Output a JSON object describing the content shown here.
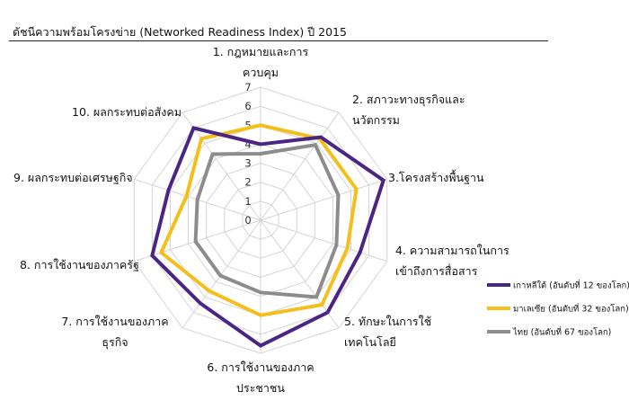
{
  "chart_data": {
    "type": "radar",
    "title": "ดัชนีความพร้อมโครงข่าย (Networked Readiness Index) ปี 2015",
    "categories": [
      [
        "1. กฎหมายและการ",
        "ควบคุม"
      ],
      [
        "2. สภาวะทางธุรกิจและ",
        "นวัตกรรม"
      ],
      [
        "3.โครงสร้างพื้นฐาน"
      ],
      [
        "4. ความสามารถในการ",
        "เข้าถึงการสื่อสาร"
      ],
      [
        "5. ทักษะในการใช้",
        "เทคโนโลยี"
      ],
      [
        "6. การใช้งานของภาค",
        "ประชาชน"
      ],
      [
        "7. การใช้งานของภาค",
        "ธุรกิจ"
      ],
      [
        "8. การใช้งานของภาครัฐ"
      ],
      [
        "9. ผลกระทบต่อเศรษฐกิจ"
      ],
      [
        "10. ผลกระทบต่อสังคม"
      ]
    ],
    "rlim": [
      0,
      7
    ],
    "ticks": [
      "0",
      "1",
      "2",
      "3",
      "4",
      "5",
      "6",
      "7"
    ],
    "legend_position": "right",
    "series": [
      {
        "name": "เกาหลีใต้ (อันดับที่ 12 ของโลก)",
        "color": "#4b2585",
        "values": [
          4.0,
          5.4,
          6.8,
          5.5,
          6.0,
          6.6,
          5.4,
          6.0,
          5.1,
          6.0
        ]
      },
      {
        "name": "มาเลเซีย (อันดับที่ 32 ของโลก)",
        "color": "#f6be1b",
        "values": [
          5.0,
          5.3,
          5.3,
          4.8,
          5.5,
          5.0,
          4.6,
          5.5,
          4.1,
          5.3
        ]
      },
      {
        "name": "ไทย (อันดับที่ 67 ของโลก)",
        "color": "#8c8c8c",
        "values": [
          3.5,
          4.9,
          4.3,
          4.2,
          5.0,
          3.8,
          3.6,
          3.6,
          3.5,
          4.3
        ]
      }
    ]
  }
}
